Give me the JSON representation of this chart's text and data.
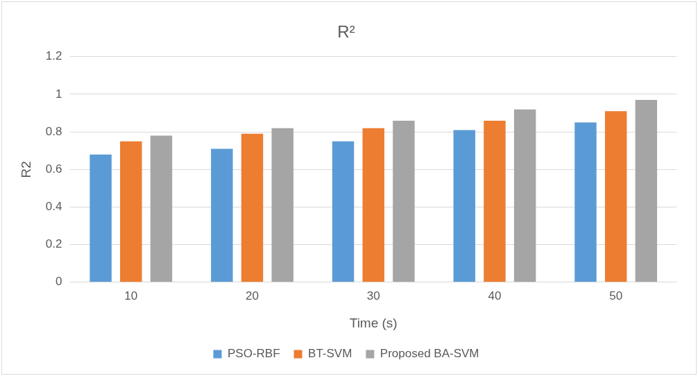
{
  "chart_data": {
    "type": "bar",
    "title": "R²",
    "xlabel": "Time (s)",
    "ylabel": "R2",
    "categories": [
      "10",
      "20",
      "30",
      "40",
      "50"
    ],
    "series": [
      {
        "name": "PSO-RBF",
        "color": "#5b9bd5",
        "values": [
          0.68,
          0.71,
          0.75,
          0.81,
          0.85
        ]
      },
      {
        "name": "BT-SVM",
        "color": "#ed7d31",
        "values": [
          0.75,
          0.79,
          0.82,
          0.86,
          0.91
        ]
      },
      {
        "name": "Proposed BA-SVM",
        "color": "#a5a5a5",
        "values": [
          0.78,
          0.82,
          0.86,
          0.92,
          0.97
        ]
      }
    ],
    "ylim": [
      0,
      1.2
    ],
    "yticks": [
      0,
      0.2,
      0.4,
      0.6,
      0.8,
      1,
      1.2
    ],
    "grid": "y",
    "legend": "bottom"
  }
}
